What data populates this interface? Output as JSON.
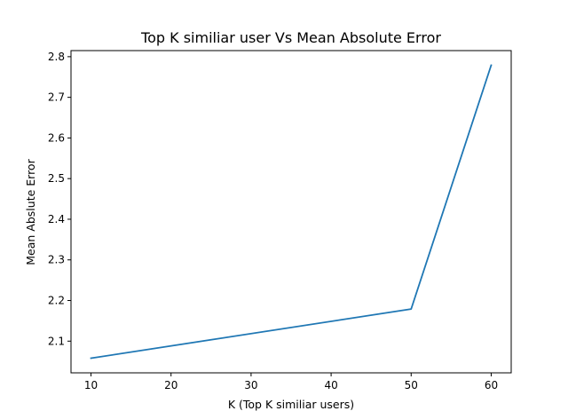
{
  "chart_data": {
    "type": "line",
    "title": "Top K similiar user Vs Mean Absolute Error",
    "xlabel": "K (Top K similiar users)",
    "ylabel": "Mean Abslute Error",
    "x": [
      10,
      50,
      60
    ],
    "series": [
      {
        "values": [
          2.058,
          2.179,
          2.779
        ],
        "color": "#1f77b4"
      }
    ],
    "xlim": [
      7.5,
      62.5
    ],
    "ylim": [
      2.022,
      2.815
    ],
    "xticks": [
      10,
      20,
      30,
      40,
      50,
      60
    ],
    "yticks": [
      2.1,
      2.2,
      2.3,
      2.4,
      2.5,
      2.6,
      2.7,
      2.8
    ],
    "xtick_labels": [
      "10",
      "20",
      "30",
      "40",
      "50",
      "60"
    ],
    "ytick_labels": [
      "2.1",
      "2.2",
      "2.3",
      "2.4",
      "2.5",
      "2.6",
      "2.7",
      "2.8"
    ],
    "grid": false,
    "legend": false
  }
}
